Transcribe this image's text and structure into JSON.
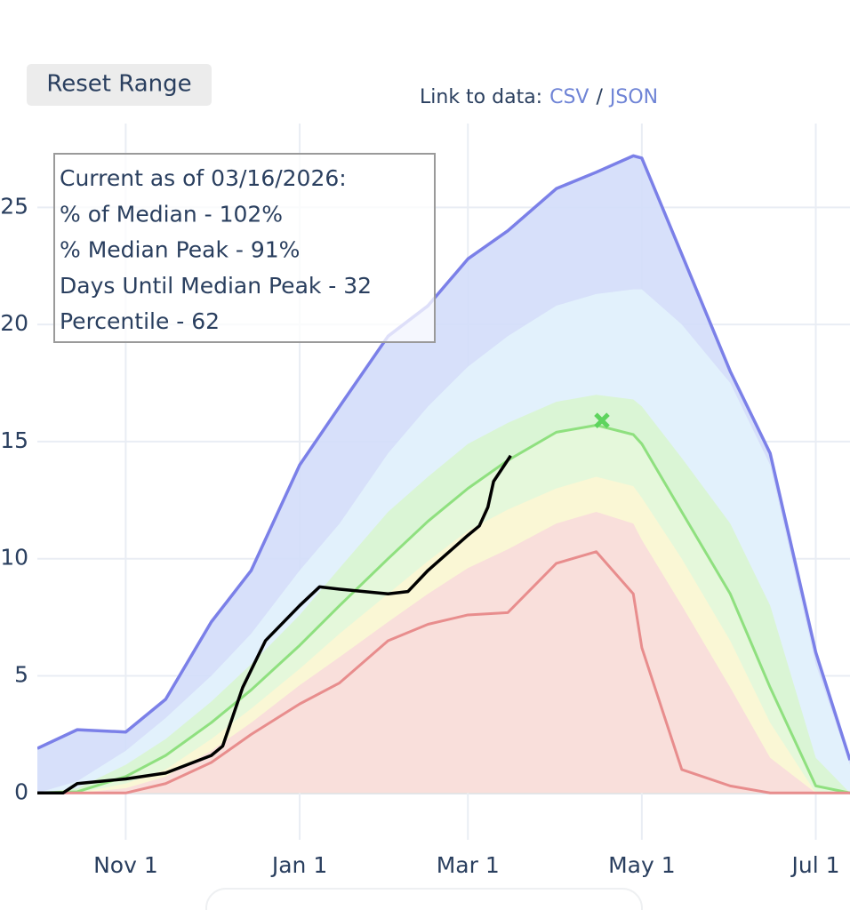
{
  "reset_button": "Reset Range",
  "data_link": {
    "label": "Link to data:",
    "csv": "CSV",
    "separator": "/",
    "json": "JSON"
  },
  "chart_data": {
    "type": "area",
    "annotation": [
      "Current as of 03/16/2026:",
      "% of Median - 102%",
      "% Median Peak - 91%",
      "Days Until Median Peak - 32",
      "Percentile - 62"
    ],
    "x": [
      "Oct 1",
      "Oct 15",
      "Nov 1",
      "Nov 15",
      "Dec 1",
      "Dec 15",
      "Jan 1",
      "Jan 15",
      "Feb 1",
      "Feb 15",
      "Mar 1",
      "Mar 15",
      "Apr 1",
      "Apr 15",
      "Apr 28",
      "May 1",
      "May 15",
      "Jun 1",
      "Jun 15",
      "Jul 1",
      "Jul 13"
    ],
    "series": [
      {
        "color": "#7b80e8",
        "fill": "#d3ddf9",
        "line_width": 3.5,
        "values": [
          1.9,
          2.7,
          2.6,
          4.0,
          7.3,
          9.5,
          14.0,
          16.5,
          19.5,
          20.8,
          22.8,
          24.0,
          25.8,
          26.5,
          27.2,
          27.1,
          23.0,
          18.0,
          14.5,
          6.0,
          1.4
        ]
      },
      {
        "color": "#e3f3fc",
        "fill": "#e3f3fc",
        "line_width": 0,
        "values": [
          0,
          0.5,
          1.8,
          3.2,
          5.0,
          6.8,
          9.5,
          11.5,
          14.5,
          16.5,
          18.2,
          19.5,
          20.8,
          21.3,
          21.5,
          21.5,
          20.0,
          17.5,
          14.0,
          5.5,
          1.2
        ]
      },
      {
        "color": "#d9f5d0",
        "fill": "#d9f5d0",
        "line_width": 0,
        "values": [
          0,
          0.2,
          1.2,
          2.3,
          3.9,
          5.5,
          7.6,
          9.6,
          12.0,
          13.5,
          14.9,
          15.8,
          16.7,
          17.0,
          16.8,
          16.5,
          14.3,
          11.5,
          8.0,
          1.5,
          0
        ]
      },
      {
        "color": "#8fe07f",
        "fill": "#e6f8dc",
        "line_width": 3,
        "values": [
          0,
          0.05,
          0.7,
          1.6,
          3.0,
          4.4,
          6.3,
          8.0,
          10.0,
          11.6,
          13.0,
          14.2,
          15.4,
          15.7,
          15.3,
          14.9,
          12.0,
          8.5,
          4.5,
          0.3,
          0
        ]
      },
      {
        "color": "#fcf6d4",
        "fill": "#fcf6d4",
        "line_width": 0,
        "values": [
          0,
          0,
          0.4,
          1.0,
          2.3,
          3.6,
          5.3,
          6.8,
          8.5,
          9.9,
          11.2,
          12.1,
          13.0,
          13.5,
          13.1,
          12.6,
          10.0,
          6.5,
          3.0,
          0,
          0
        ]
      },
      {
        "color": "#f8dcdc",
        "fill": "#f8dcdc",
        "line_width": 0,
        "values": [
          0,
          0,
          0.2,
          0.7,
          1.8,
          3.0,
          4.6,
          5.8,
          7.3,
          8.5,
          9.6,
          10.4,
          11.5,
          12.0,
          11.5,
          10.8,
          8.0,
          4.5,
          1.5,
          0,
          0
        ]
      },
      {
        "color": "#e88d8d",
        "fill": null,
        "line_width": 3,
        "values": [
          0,
          0,
          0,
          0.4,
          1.3,
          2.5,
          3.8,
          4.7,
          6.5,
          7.2,
          7.6,
          7.7,
          9.8,
          10.3,
          8.5,
          6.2,
          1.0,
          0.3,
          0,
          0,
          0
        ]
      },
      {
        "color": "#000000",
        "fill": null,
        "line_width": 3.5,
        "x": [
          "Oct 1",
          "Oct 10",
          "Oct 15",
          "Nov 1",
          "Nov 15",
          "Dec 1",
          "Dec 5",
          "Dec 12",
          "Dec 20",
          "Jan 1",
          "Jan 8",
          "Jan 15",
          "Feb 1",
          "Feb 8",
          "Feb 15",
          "Mar 1",
          "Mar 5",
          "Mar 8",
          "Mar 10",
          "Mar 16"
        ],
        "values": [
          0,
          0,
          0.4,
          0.6,
          0.85,
          1.6,
          2.0,
          4.5,
          6.5,
          8.0,
          8.8,
          8.7,
          8.5,
          8.6,
          9.5,
          11.0,
          11.4,
          12.2,
          13.3,
          14.4
        ]
      }
    ],
    "markers": [
      {
        "x": "Apr 17",
        "y": 15.9,
        "symbol": "x",
        "color": "#5ed45e"
      }
    ],
    "xlim": [
      "Oct 1",
      "Jul 13"
    ],
    "xticks": [
      "Nov 1",
      "Jan 1",
      "Mar 1",
      "May 1",
      "Jul 1"
    ],
    "ylim": [
      -2,
      28.2
    ],
    "yticks": [
      0,
      5,
      10,
      15,
      20,
      25
    ],
    "grid": true
  }
}
